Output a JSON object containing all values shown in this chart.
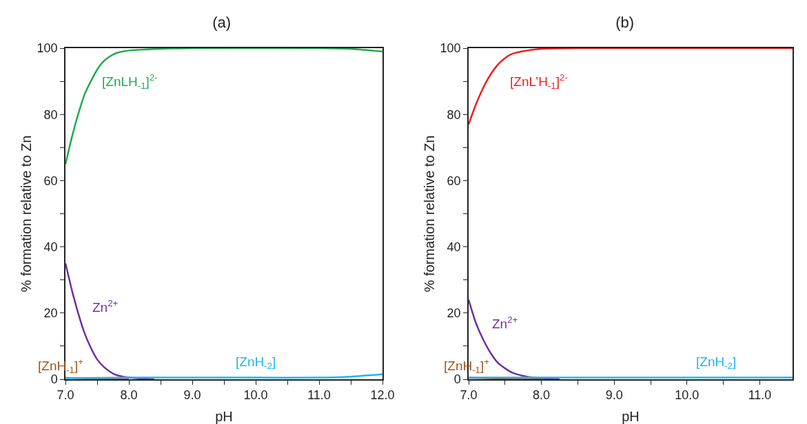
{
  "chart_data": [
    {
      "type": "line",
      "title": "(a)",
      "xlabel": "pH",
      "ylabel": "% formation relative to Zn",
      "xlim": [
        7,
        12
      ],
      "ylim": [
        0,
        100
      ],
      "xticks": [
        {
          "value": 7,
          "label": "7.0"
        },
        {
          "value": 7.5,
          "label": null
        },
        {
          "value": 8,
          "label": "8.0"
        },
        {
          "value": 8.5,
          "label": null
        },
        {
          "value": 9,
          "label": "9.0"
        },
        {
          "value": 9.5,
          "label": null
        },
        {
          "value": 10,
          "label": "10.0"
        },
        {
          "value": 10.5,
          "label": null
        },
        {
          "value": 11,
          "label": "11.0"
        },
        {
          "value": 11.5,
          "label": null
        },
        {
          "value": 12,
          "label": "12.0"
        }
      ],
      "yticks": [
        0,
        {
          "value": 10,
          "label": null
        },
        20,
        {
          "value": 30,
          "label": null
        },
        40,
        {
          "value": 50,
          "label": null
        },
        60,
        {
          "value": 70,
          "label": null
        },
        80,
        {
          "value": 90,
          "label": null
        },
        100
      ],
      "grid": false,
      "legend": false,
      "marker": "none",
      "line_style": "solid",
      "series": [
        {
          "name": "[ZnLH$_{-1}$]$^{2-}$",
          "color": "#1eaa50",
          "x": [
            7.0,
            7.1,
            7.2,
            7.3,
            7.4,
            7.5,
            7.6,
            7.7,
            7.8,
            8.0,
            8.5,
            9.0,
            11.0,
            11.5,
            12.0
          ],
          "values": [
            65,
            73,
            80,
            86,
            90,
            93.5,
            96,
            97.5,
            98.5,
            99.3,
            99.8,
            100,
            100,
            99.8,
            99
          ]
        },
        {
          "name": "Zn$^{2+}$",
          "color": "#7030a0",
          "x": [
            7.0,
            7.1,
            7.2,
            7.3,
            7.4,
            7.5,
            7.6,
            7.7,
            7.8,
            8.0,
            8.4
          ],
          "values": [
            35,
            27,
            20,
            14,
            9.5,
            6,
            3.8,
            2.3,
            1.3,
            0.5,
            0
          ]
        },
        {
          "name": "[ZnH$_{-1}$]$^{+}$",
          "color": "#a0561e",
          "x": [
            7.0,
            7.5,
            8.0
          ],
          "values": [
            0.4,
            0.2,
            0
          ]
        },
        {
          "name": "[ZnH$_{-2}$]",
          "color": "#1eb4f0",
          "x": [
            7.0,
            8.0,
            9.0,
            10.0,
            11.0,
            11.5,
            12.0
          ],
          "values": [
            0.3,
            0.5,
            0.5,
            0.5,
            0.5,
            0.8,
            1.5
          ]
        }
      ]
    },
    {
      "type": "line",
      "title": "(b)",
      "xlabel": "pH",
      "ylabel": "% formation relative to Zn",
      "xlim": [
        7,
        11.45
      ],
      "ylim": [
        0,
        100
      ],
      "xticks": [
        {
          "value": 7,
          "label": "7.0"
        },
        {
          "value": 7.5,
          "label": null
        },
        {
          "value": 8,
          "label": "8.0"
        },
        {
          "value": 8.5,
          "label": null
        },
        {
          "value": 9,
          "label": "9.0"
        },
        {
          "value": 9.5,
          "label": null
        },
        {
          "value": 10,
          "label": "10.0"
        },
        {
          "value": 10.5,
          "label": null
        },
        {
          "value": 11,
          "label": "11.0"
        }
      ],
      "yticks": [
        0,
        {
          "value": 10,
          "label": null
        },
        20,
        {
          "value": 30,
          "label": null
        },
        40,
        {
          "value": 50,
          "label": null
        },
        60,
        {
          "value": 70,
          "label": null
        },
        80,
        {
          "value": 90,
          "label": null
        },
        100
      ],
      "grid": false,
      "legend": false,
      "marker": "none",
      "line_style": "solid",
      "series": [
        {
          "name": "[ZnL’H$_{-1}$]$^{2-}$",
          "color": "#f01e1e",
          "x": [
            7.0,
            7.1,
            7.2,
            7.3,
            7.4,
            7.5,
            7.6,
            7.8,
            8.0,
            8.5,
            11.45
          ],
          "values": [
            77,
            83,
            88,
            92,
            95,
            97,
            98.3,
            99.3,
            99.8,
            100,
            100
          ]
        },
        {
          "name": "Zn$^{2+}$",
          "color": "#7030a0",
          "x": [
            7.0,
            7.1,
            7.2,
            7.3,
            7.4,
            7.5,
            7.6,
            7.8,
            8.0,
            8.25
          ],
          "values": [
            24,
            17,
            12,
            8,
            5,
            3.3,
            2,
            0.8,
            0.3,
            0
          ]
        },
        {
          "name": "[ZnH$_{-1}$]$^{+}$",
          "color": "#a0561e",
          "x": [
            7.0,
            7.5,
            8.0
          ],
          "values": [
            0.4,
            0.2,
            0
          ]
        },
        {
          "name": "[ZnH$_{-2}$]",
          "color": "#1eb4f0",
          "x": [
            7.0,
            11.45
          ],
          "values": [
            0.5,
            0.5
          ]
        }
      ]
    }
  ]
}
